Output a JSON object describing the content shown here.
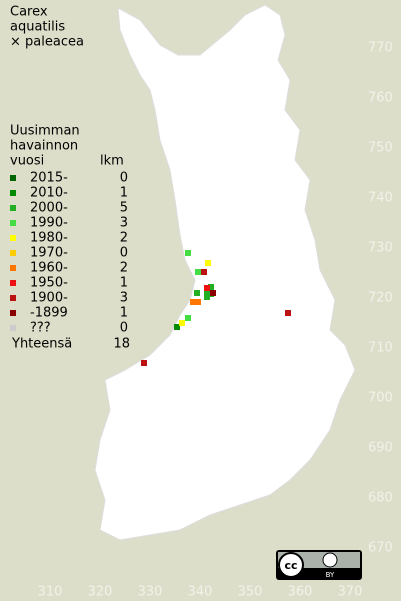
{
  "title": [
    "Carex",
    "aquatilis",
    "× paleacea"
  ],
  "legend": {
    "header": [
      "Uusimman",
      "havainnon",
      "vuosi"
    ],
    "count_header": "lkm",
    "rows": [
      {
        "label": "2015-",
        "count": 0,
        "color": "#006400",
        "points": []
      },
      {
        "label": "2010-",
        "count": 1,
        "color": "#008a00",
        "points": [
          [
            335.4,
            714.2
          ]
        ]
      },
      {
        "label": "2000-",
        "count": 5,
        "color": "#22b022",
        "points": [
          [
            339.4,
            721
          ],
          [
            341.4,
            721
          ],
          [
            342.2,
            722.2
          ],
          [
            342.2,
            720.8
          ],
          [
            341.4,
            720.2
          ]
        ]
      },
      {
        "label": "1990-",
        "count": 3,
        "color": "#44dd44",
        "points": [
          [
            337.6,
            729
          ],
          [
            339.6,
            725.2
          ],
          [
            337.6,
            716
          ]
        ]
      },
      {
        "label": "1980-",
        "count": 2,
        "color": "#ffff00",
        "points": [
          [
            341.6,
            727
          ],
          [
            336.4,
            715
          ]
        ]
      },
      {
        "label": "1970-",
        "count": 0,
        "color": "#ffcc00",
        "points": []
      },
      {
        "label": "1960-",
        "count": 2,
        "color": "#ff7700",
        "points": [
          [
            338.6,
            719.2
          ],
          [
            339.6,
            719.2
          ]
        ]
      },
      {
        "label": "1950-",
        "count": 1,
        "color": "#ee1111",
        "points": [
          [
            341.4,
            722
          ]
        ]
      },
      {
        "label": "1900-",
        "count": 3,
        "color": "#bb1111",
        "points": [
          [
            340.8,
            725.2
          ],
          [
            357.6,
            717
          ],
          [
            328.8,
            707
          ]
        ]
      },
      {
        "label": "-1899",
        "count": 1,
        "color": "#880000",
        "points": [
          [
            342.6,
            721
          ]
        ]
      },
      {
        "label": "???",
        "count": 0,
        "color": "#cccccc",
        "points": []
      }
    ],
    "total_label": "Yhteensä",
    "total": 18
  },
  "map": {
    "y_labels": [
      770,
      760,
      750,
      740,
      730,
      720,
      710,
      700,
      690,
      680,
      670
    ],
    "x_labels": [
      310,
      320,
      330,
      340,
      350,
      360,
      370
    ]
  },
  "badge": {
    "cc": "cc",
    "by": "BY"
  }
}
